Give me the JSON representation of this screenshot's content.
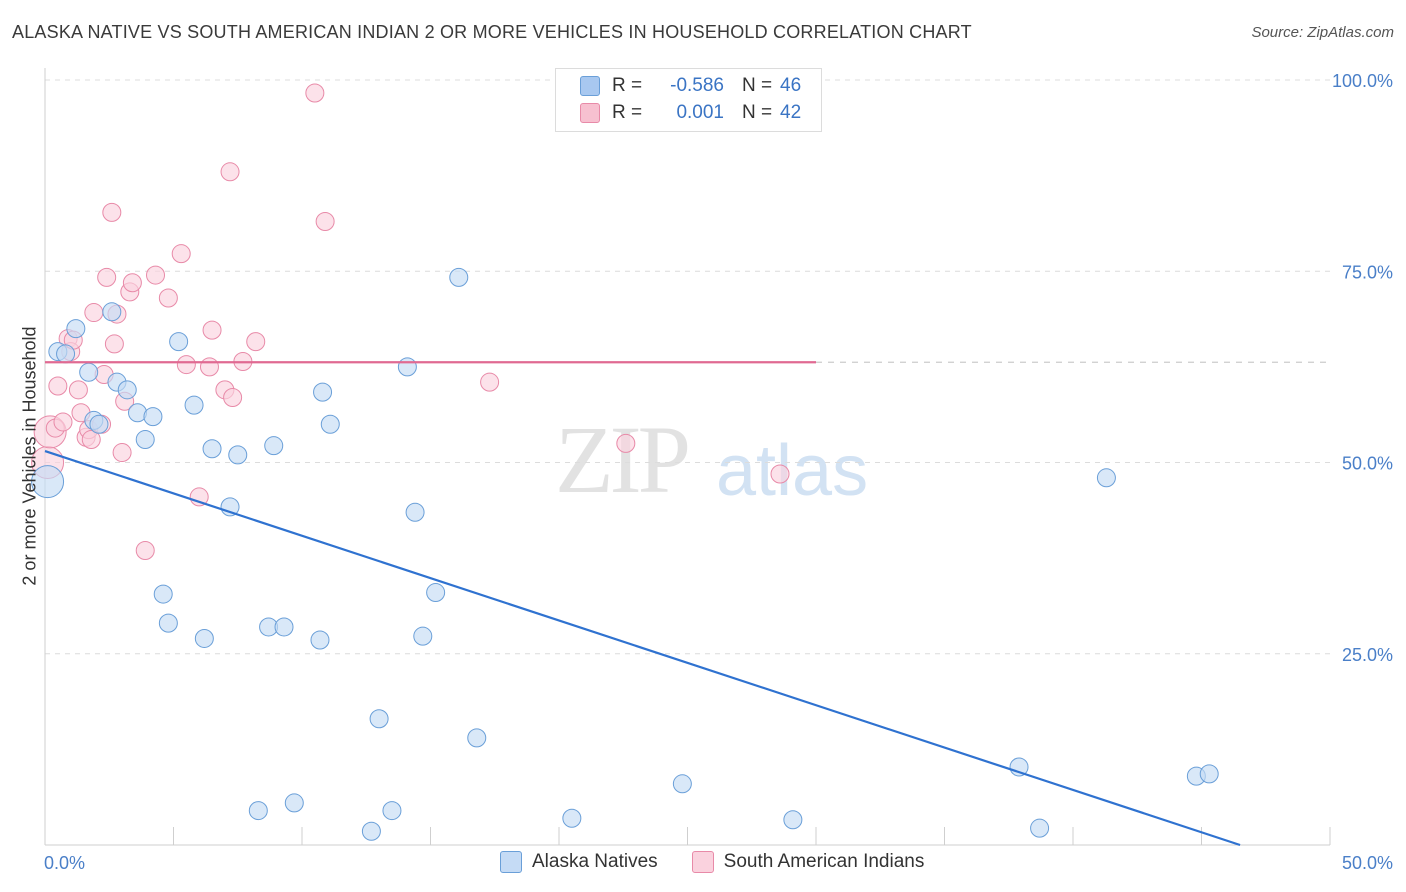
{
  "header": {
    "title": "ALASKA NATIVE VS SOUTH AMERICAN INDIAN 2 OR MORE VEHICLES IN HOUSEHOLD CORRELATION CHART",
    "source": "Source: ZipAtlas.com"
  },
  "watermark": {
    "zip": "ZIP",
    "atlas": "atlas"
  },
  "legend": {
    "rows": [
      {
        "r_label": "R =",
        "r_value": "-0.586",
        "n_label": "N =",
        "n_value": "46",
        "color": "#a8c8f0",
        "border": "#6a9fd8"
      },
      {
        "r_label": "R =",
        "r_value": "0.001",
        "n_label": "N =",
        "n_value": "42",
        "color": "#f7c0d0",
        "border": "#e88aa8"
      }
    ]
  },
  "bottom_legend": {
    "items": [
      {
        "label": "Alaska Natives",
        "color": "#c5dbf5",
        "border": "#6a9fd8"
      },
      {
        "label": "South American Indians",
        "color": "#fad2de",
        "border": "#e88aa8"
      }
    ]
  },
  "chart_data": {
    "type": "scatter",
    "title": "ALASKA NATIVE VS SOUTH AMERICAN INDIAN 2 OR MORE VEHICLES IN HOUSEHOLD CORRELATION CHART",
    "xlabel": "",
    "ylabel": "2 or more Vehicles in Household",
    "xlim": [
      0,
      50
    ],
    "ylim": [
      0,
      100
    ],
    "x_ticks": [
      "0.0%",
      "50.0%"
    ],
    "y_ticks": [
      {
        "value": 100,
        "label": "100.0%"
      },
      {
        "value": 75,
        "label": "75.0%"
      },
      {
        "value": 50,
        "label": "50.0%"
      },
      {
        "value": 25,
        "label": "25.0%"
      }
    ],
    "grid": true,
    "legend_position": "top-center",
    "series": [
      {
        "name": "Alaska Natives",
        "color": "#6a9fd8",
        "fill": "#c5dbf5",
        "trend": {
          "x": [
            0,
            46.5
          ],
          "y": [
            51.5,
            0
          ]
        },
        "points": [
          [
            0.1,
            47.5
          ],
          [
            0.5,
            64.5
          ],
          [
            0.8,
            64.2
          ],
          [
            1.2,
            67.5
          ],
          [
            1.7,
            61.8
          ],
          [
            1.9,
            55.5
          ],
          [
            2.1,
            55.0
          ],
          [
            2.6,
            69.7
          ],
          [
            2.8,
            60.5
          ],
          [
            3.2,
            59.5
          ],
          [
            3.6,
            56.5
          ],
          [
            3.9,
            53.0
          ],
          [
            4.2,
            56.0
          ],
          [
            4.6,
            32.8
          ],
          [
            4.8,
            29.0
          ],
          [
            5.2,
            65.8
          ],
          [
            5.8,
            57.5
          ],
          [
            6.2,
            27.0
          ],
          [
            6.5,
            51.8
          ],
          [
            7.2,
            44.2
          ],
          [
            7.5,
            51.0
          ],
          [
            8.3,
            4.5
          ],
          [
            8.7,
            28.5
          ],
          [
            8.9,
            52.2
          ],
          [
            9.3,
            28.5
          ],
          [
            9.7,
            5.5
          ],
          [
            10.7,
            26.8
          ],
          [
            10.8,
            59.2
          ],
          [
            11.1,
            55.0
          ],
          [
            12.7,
            1.8
          ],
          [
            13.0,
            16.5
          ],
          [
            13.5,
            4.5
          ],
          [
            14.1,
            62.5
          ],
          [
            14.4,
            43.5
          ],
          [
            14.7,
            27.3
          ],
          [
            15.2,
            33.0
          ],
          [
            16.1,
            74.2
          ],
          [
            16.8,
            14.0
          ],
          [
            20.5,
            3.5
          ],
          [
            24.8,
            8.0
          ],
          [
            29.1,
            3.3
          ],
          [
            37.9,
            10.2
          ],
          [
            38.7,
            2.2
          ],
          [
            41.3,
            48.0
          ],
          [
            44.8,
            9.0
          ],
          [
            45.3,
            9.3
          ]
        ]
      },
      {
        "name": "South American Indians",
        "color": "#e88aa8",
        "fill": "#fad2de",
        "trend": {
          "x": [
            0,
            30
          ],
          "y": [
            63.1,
            63.1
          ],
          "dashed_to": 50
        },
        "points": [
          [
            0.1,
            50.0
          ],
          [
            0.2,
            54.0
          ],
          [
            0.4,
            54.5
          ],
          [
            0.5,
            60.0
          ],
          [
            0.7,
            55.3
          ],
          [
            0.9,
            66.2
          ],
          [
            1.0,
            64.5
          ],
          [
            1.1,
            66.0
          ],
          [
            1.3,
            59.5
          ],
          [
            1.4,
            56.5
          ],
          [
            1.6,
            53.3
          ],
          [
            1.7,
            54.3
          ],
          [
            1.8,
            53.0
          ],
          [
            1.9,
            69.6
          ],
          [
            2.2,
            55.0
          ],
          [
            2.3,
            61.5
          ],
          [
            2.4,
            74.2
          ],
          [
            2.6,
            82.7
          ],
          [
            2.7,
            65.5
          ],
          [
            2.8,
            69.4
          ],
          [
            3.0,
            51.3
          ],
          [
            3.1,
            58.0
          ],
          [
            3.3,
            72.3
          ],
          [
            3.4,
            73.5
          ],
          [
            3.9,
            38.5
          ],
          [
            4.3,
            74.5
          ],
          [
            4.8,
            71.5
          ],
          [
            5.3,
            77.3
          ],
          [
            5.5,
            62.8
          ],
          [
            6.0,
            45.5
          ],
          [
            6.4,
            62.5
          ],
          [
            6.5,
            67.3
          ],
          [
            7.0,
            59.5
          ],
          [
            7.2,
            88.0
          ],
          [
            7.3,
            58.5
          ],
          [
            7.7,
            63.2
          ],
          [
            8.2,
            65.8
          ],
          [
            10.5,
            98.3
          ],
          [
            10.9,
            81.5
          ],
          [
            17.3,
            60.5
          ],
          [
            22.6,
            52.5
          ],
          [
            28.6,
            48.5
          ]
        ]
      }
    ]
  }
}
